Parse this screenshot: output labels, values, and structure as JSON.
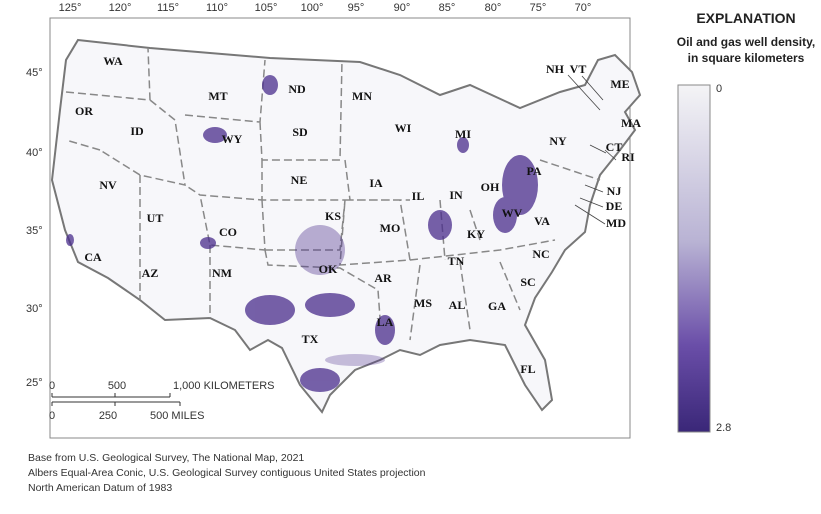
{
  "map": {
    "longitude_labels": [
      "125°",
      "120°",
      "115°",
      "110°",
      "105°",
      "100°",
      "95°",
      "90°",
      "85°",
      "80°",
      "75°",
      "70°"
    ],
    "latitude_labels": [
      "45°",
      "40°",
      "35°",
      "30°",
      "25°"
    ],
    "states": [
      "WA",
      "OR",
      "ID",
      "MT",
      "ND",
      "MN",
      "WI",
      "MI",
      "NY",
      "ME",
      "NH",
      "VT",
      "MA",
      "CT",
      "RI",
      "NJ",
      "DE",
      "MD",
      "PA",
      "OH",
      "IN",
      "IL",
      "IA",
      "NE",
      "SD",
      "WY",
      "NV",
      "UT",
      "CO",
      "KS",
      "MO",
      "KY",
      "WV",
      "VA",
      "TN",
      "NC",
      "SC",
      "GA",
      "AL",
      "MS",
      "LA",
      "AR",
      "OK",
      "TX",
      "NM",
      "AZ",
      "CA",
      "FL"
    ]
  },
  "scale_bar": {
    "kilometers": [
      "0",
      "500",
      "1,000 KILOMETERS"
    ],
    "miles": [
      "0",
      "250",
      "500 MILES"
    ]
  },
  "legend": {
    "title": "EXPLANATION",
    "subtitle_line1": "Oil and gas well density,",
    "subtitle_line2": "in square kilometers",
    "min": 0,
    "max": 2.8
  },
  "notes": [
    "Base from U.S. Geological Survey, The National Map, 2021",
    "Albers Equal-Area Conic, U.S. Geological Survey contiguous United States projection",
    "North American Datum of 1983"
  ]
}
